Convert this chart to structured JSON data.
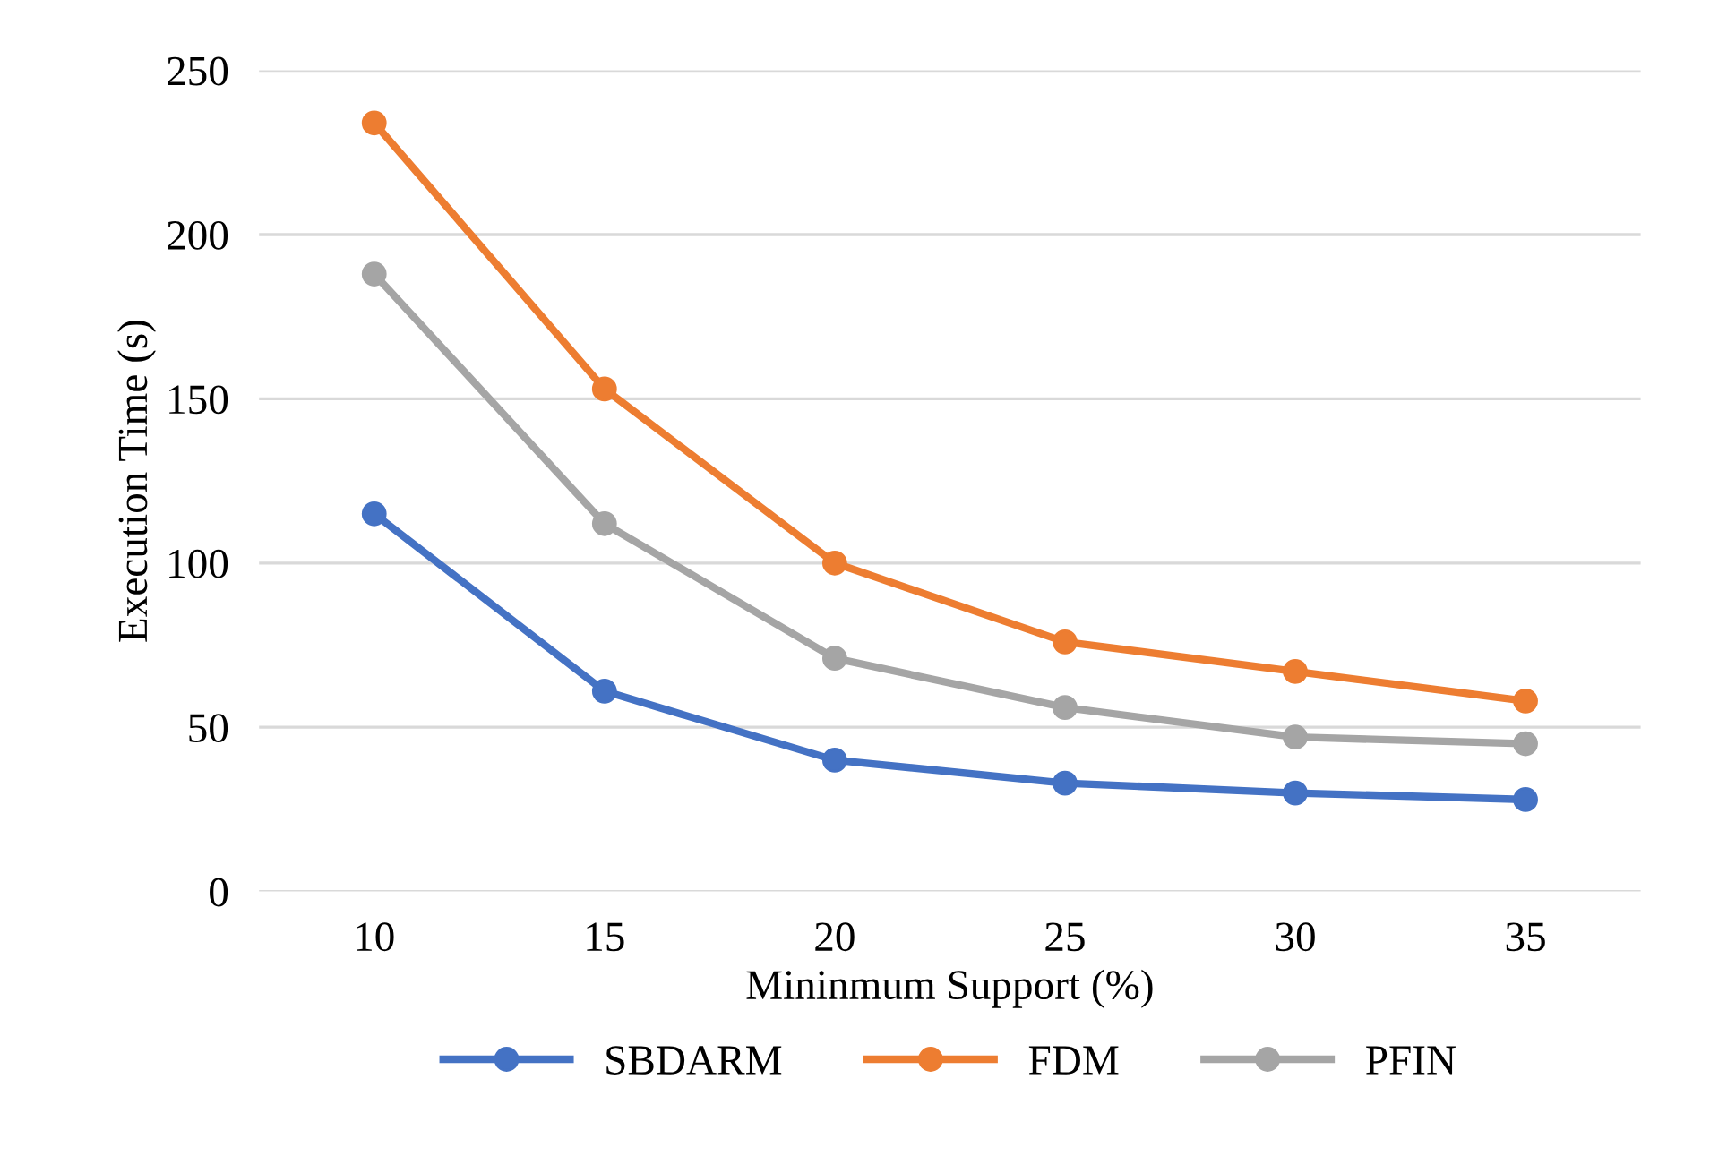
{
  "chart_data": {
    "type": "line",
    "xlabel": "Mininmum Support (%)",
    "ylabel": "Execution Time (s)",
    "categories": [
      "10",
      "15",
      "20",
      "25",
      "30",
      "35"
    ],
    "series": [
      {
        "name": "SBDARM",
        "color": "#4472c4",
        "values": [
          115,
          61,
          40,
          33,
          30,
          28
        ]
      },
      {
        "name": "FDM",
        "color": "#ed7d31",
        "values": [
          234,
          153,
          100,
          76,
          67,
          58
        ]
      },
      {
        "name": "PFIN",
        "color": "#a5a5a5",
        "values": [
          188,
          112,
          71,
          56,
          47,
          45
        ]
      }
    ],
    "ylim": [
      0,
      250
    ],
    "yticks": [
      0,
      50,
      100,
      150,
      200,
      250
    ],
    "grid": "y",
    "legend": "bottom",
    "marker": "circle",
    "line_style": "solid"
  }
}
